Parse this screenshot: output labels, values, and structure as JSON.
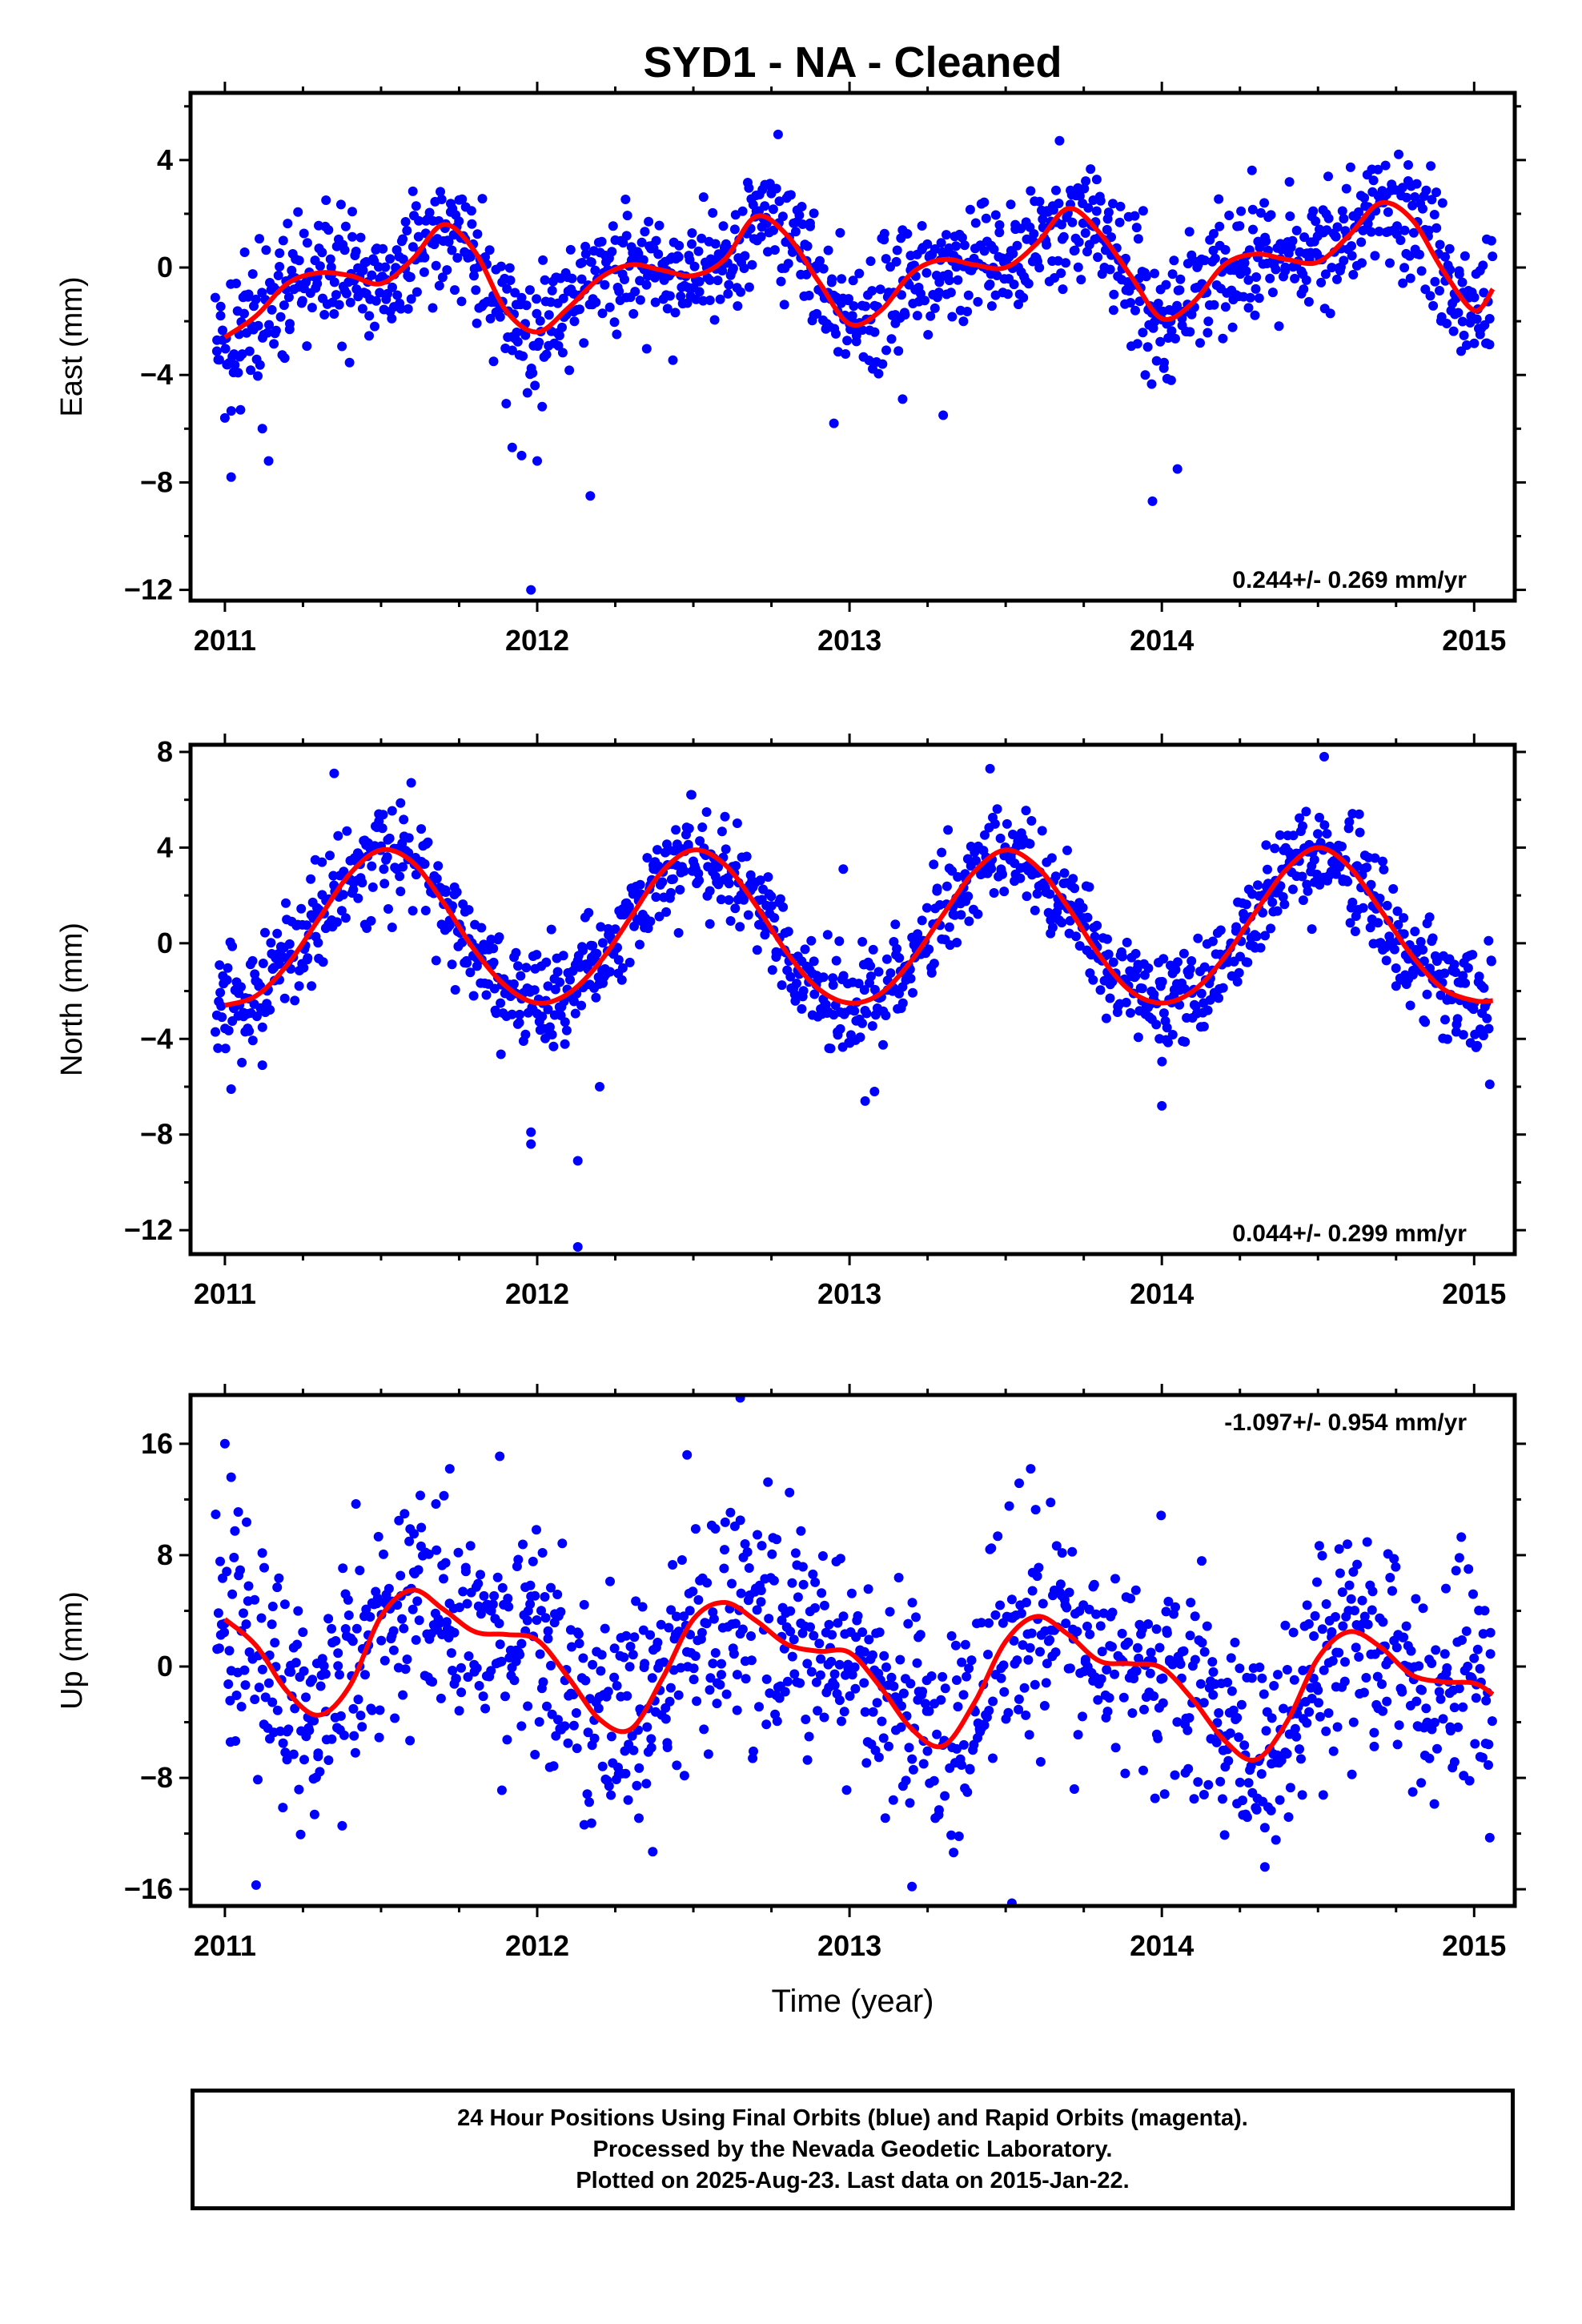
{
  "title": "SYD1  - NA - Cleaned",
  "xlabel": "Time (year)",
  "footer": {
    "line1": "24 Hour Positions Using Final Orbits (blue) and Rapid Orbits (magenta).",
    "line2": "Processed by the Nevada Geodetic Laboratory.",
    "line3": "Plotted on 2025-Aug-23. Last data on 2015-Jan-22."
  },
  "colors": {
    "points": "#0000ff",
    "fit": "#ff0000",
    "frame": "#000000"
  },
  "chart_data": [
    {
      "type": "scatter",
      "ylabel": "East (mm)",
      "rate_label": "0.244+/- 0.269 mm/yr",
      "rate_position": "bottom-right",
      "xlim": [
        2010.89,
        2015.13
      ],
      "ylim": [
        -12.4,
        6.5
      ],
      "xticks": [
        2011,
        2012,
        2013,
        2014,
        2015
      ],
      "yticks": [
        4,
        0,
        -4,
        -8,
        -12
      ],
      "fit_line": [
        [
          2011.0,
          -2.6
        ],
        [
          2011.1,
          -1.8
        ],
        [
          2011.2,
          -0.6
        ],
        [
          2011.3,
          -0.2
        ],
        [
          2011.4,
          -0.3
        ],
        [
          2011.5,
          -0.6
        ],
        [
          2011.6,
          0.3
        ],
        [
          2011.7,
          1.6
        ],
        [
          2011.8,
          0.6
        ],
        [
          2011.9,
          -1.6
        ],
        [
          2012.0,
          -2.4
        ],
        [
          2012.1,
          -1.5
        ],
        [
          2012.2,
          -0.4
        ],
        [
          2012.3,
          0.1
        ],
        [
          2012.4,
          -0.1
        ],
        [
          2012.5,
          -0.3
        ],
        [
          2012.6,
          0.3
        ],
        [
          2012.7,
          1.9
        ],
        [
          2012.8,
          1.2
        ],
        [
          2012.9,
          -0.5
        ],
        [
          2013.0,
          -2.1
        ],
        [
          2013.1,
          -1.6
        ],
        [
          2013.2,
          -0.2
        ],
        [
          2013.3,
          0.3
        ],
        [
          2013.4,
          0.1
        ],
        [
          2013.5,
          0.0
        ],
        [
          2013.6,
          0.9
        ],
        [
          2013.7,
          2.2
        ],
        [
          2013.8,
          1.3
        ],
        [
          2013.9,
          -0.3
        ],
        [
          2014.0,
          -1.9
        ],
        [
          2014.1,
          -1.3
        ],
        [
          2014.2,
          0.1
        ],
        [
          2014.3,
          0.5
        ],
        [
          2014.4,
          0.3
        ],
        [
          2014.5,
          0.2
        ],
        [
          2014.6,
          1.2
        ],
        [
          2014.7,
          2.4
        ],
        [
          2014.8,
          1.8
        ],
        [
          2014.9,
          -0.1
        ],
        [
          2015.0,
          -1.6
        ],
        [
          2015.06,
          -0.8
        ]
      ],
      "outliers": [
        [
          2011.0,
          -5.6
        ],
        [
          2011.02,
          -7.8
        ],
        [
          2011.05,
          -5.3
        ],
        [
          2011.12,
          -6.0
        ],
        [
          2011.14,
          -7.2
        ],
        [
          2011.92,
          -6.7
        ],
        [
          2011.95,
          -7.0
        ],
        [
          2012.0,
          -7.2
        ],
        [
          2011.98,
          -12.0
        ],
        [
          2012.17,
          -8.5
        ],
        [
          2012.95,
          -5.8
        ],
        [
          2013.17,
          -4.9
        ],
        [
          2013.3,
          -5.5
        ],
        [
          2013.97,
          -8.7
        ],
        [
          2014.05,
          -7.5
        ],
        [
          2014.03,
          -4.2
        ]
      ],
      "scatter": {
        "n": 1350,
        "noise": 1.15,
        "seed": 11
      }
    },
    {
      "type": "scatter",
      "ylabel": "North (mm)",
      "rate_label": "0.044+/- 0.299 mm/yr",
      "rate_position": "bottom-right",
      "xlim": [
        2010.89,
        2015.13
      ],
      "ylim": [
        -13.0,
        8.3
      ],
      "xticks": [
        2011,
        2012,
        2013,
        2014,
        2015
      ],
      "yticks": [
        8,
        4,
        0,
        -4,
        -8,
        -12
      ],
      "fit_line": [
        [
          2011.0,
          -2.6
        ],
        [
          2011.1,
          -2.2
        ],
        [
          2011.2,
          -0.9
        ],
        [
          2011.3,
          1.0
        ],
        [
          2011.4,
          2.9
        ],
        [
          2011.5,
          3.9
        ],
        [
          2011.6,
          3.4
        ],
        [
          2011.7,
          1.7
        ],
        [
          2011.8,
          -0.3
        ],
        [
          2011.9,
          -1.8
        ],
        [
          2012.0,
          -2.5
        ],
        [
          2012.1,
          -2.1
        ],
        [
          2012.2,
          -0.8
        ],
        [
          2012.3,
          1.1
        ],
        [
          2012.4,
          3.0
        ],
        [
          2012.5,
          3.9
        ],
        [
          2012.6,
          3.3
        ],
        [
          2012.7,
          1.6
        ],
        [
          2012.8,
          -0.4
        ],
        [
          2012.9,
          -1.9
        ],
        [
          2013.0,
          -2.5
        ],
        [
          2013.1,
          -2.1
        ],
        [
          2013.2,
          -0.7
        ],
        [
          2013.3,
          1.2
        ],
        [
          2013.4,
          3.0
        ],
        [
          2013.5,
          3.9
        ],
        [
          2013.6,
          3.2
        ],
        [
          2013.7,
          1.5
        ],
        [
          2013.8,
          -0.5
        ],
        [
          2013.9,
          -2.0
        ],
        [
          2014.0,
          -2.5
        ],
        [
          2014.1,
          -2.0
        ],
        [
          2014.2,
          -0.6
        ],
        [
          2014.3,
          1.3
        ],
        [
          2014.4,
          3.1
        ],
        [
          2014.5,
          4.0
        ],
        [
          2014.6,
          3.2
        ],
        [
          2014.7,
          1.4
        ],
        [
          2014.8,
          -0.5
        ],
        [
          2014.9,
          -1.9
        ],
        [
          2015.0,
          -2.4
        ],
        [
          2015.06,
          -2.4
        ]
      ],
      "outliers": [
        [
          2011.02,
          -6.1
        ],
        [
          2011.12,
          -5.1
        ],
        [
          2011.98,
          -7.9
        ],
        [
          2011.98,
          -8.4
        ],
        [
          2012.13,
          -9.1
        ],
        [
          2012.2,
          -6.0
        ],
        [
          2012.13,
          -12.7
        ],
        [
          2013.08,
          -6.2
        ],
        [
          2013.05,
          -6.6
        ],
        [
          2014.0,
          -6.8
        ],
        [
          2015.05,
          -5.9
        ],
        [
          2012.98,
          3.1
        ],
        [
          2013.45,
          7.3
        ],
        [
          2011.35,
          7.1
        ],
        [
          2014.52,
          7.8
        ]
      ],
      "scatter": {
        "n": 1350,
        "noise": 1.05,
        "seed": 23
      }
    },
    {
      "type": "scatter",
      "ylabel": "Up (mm)",
      "rate_label": "-1.097+/- 0.954 mm/yr",
      "rate_position": "top-right",
      "xlim": [
        2010.89,
        2015.13
      ],
      "ylim": [
        -17.2,
        19.5
      ],
      "xticks": [
        2011,
        2012,
        2013,
        2014,
        2015
      ],
      "yticks": [
        16,
        8,
        0,
        -8,
        -16
      ],
      "fit_line": [
        [
          2011.0,
          3.4
        ],
        [
          2011.1,
          1.5
        ],
        [
          2011.2,
          -1.8
        ],
        [
          2011.3,
          -3.5
        ],
        [
          2011.4,
          -1.4
        ],
        [
          2011.5,
          3.6
        ],
        [
          2011.6,
          5.5
        ],
        [
          2011.7,
          4.1
        ],
        [
          2011.8,
          2.5
        ],
        [
          2011.9,
          2.3
        ],
        [
          2012.0,
          1.9
        ],
        [
          2012.1,
          -0.8
        ],
        [
          2012.2,
          -3.8
        ],
        [
          2012.3,
          -4.5
        ],
        [
          2012.4,
          -0.9
        ],
        [
          2012.5,
          3.4
        ],
        [
          2012.6,
          4.6
        ],
        [
          2012.7,
          3.3
        ],
        [
          2012.8,
          1.6
        ],
        [
          2012.9,
          1.1
        ],
        [
          2013.0,
          1.0
        ],
        [
          2013.1,
          -1.5
        ],
        [
          2013.2,
          -4.5
        ],
        [
          2013.3,
          -5.7
        ],
        [
          2013.4,
          -2.6
        ],
        [
          2013.5,
          1.8
        ],
        [
          2013.6,
          3.6
        ],
        [
          2013.7,
          2.3
        ],
        [
          2013.8,
          0.4
        ],
        [
          2013.9,
          0.2
        ],
        [
          2014.0,
          -0.1
        ],
        [
          2014.1,
          -2.4
        ],
        [
          2014.2,
          -5.3
        ],
        [
          2014.3,
          -6.7
        ],
        [
          2014.4,
          -4.0
        ],
        [
          2014.5,
          0.6
        ],
        [
          2014.6,
          2.5
        ],
        [
          2014.7,
          1.4
        ],
        [
          2014.8,
          -0.6
        ],
        [
          2014.9,
          -1.1
        ],
        [
          2015.0,
          -1.2
        ],
        [
          2015.06,
          -2.0
        ]
      ],
      "outliers": [
        [
          2011.0,
          16.0
        ],
        [
          2011.02,
          13.6
        ],
        [
          2012.65,
          19.3
        ],
        [
          2012.48,
          15.2
        ],
        [
          2011.88,
          15.1
        ],
        [
          2011.1,
          -15.7
        ],
        [
          2013.2,
          -15.8
        ],
        [
          2013.52,
          -17.0
        ],
        [
          2014.33,
          -14.4
        ],
        [
          2015.05,
          -12.3
        ],
        [
          2012.37,
          -13.3
        ],
        [
          2011.72,
          14.2
        ],
        [
          2013.58,
          14.2
        ]
      ],
      "scatter": {
        "n": 1350,
        "noise": 4.0,
        "seed": 37
      }
    }
  ]
}
